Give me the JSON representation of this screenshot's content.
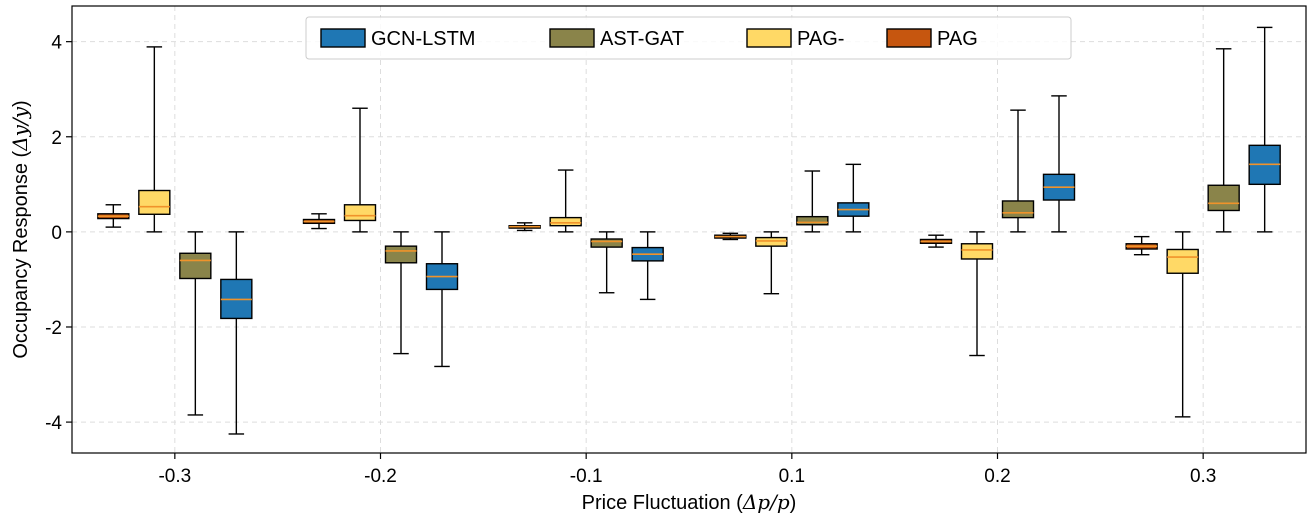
{
  "chart_data": {
    "type": "box",
    "categories": [
      "-0.3",
      "-0.2",
      "-0.1",
      "0.1",
      "0.2",
      "0.3"
    ],
    "xlabel_prefix": "Price Fluctuation (",
    "xlabel_math": "Δp/p",
    "xlabel_suffix": ")",
    "ylabel_prefix": "Occupancy Response (",
    "ylabel_math": "Δy/y",
    "ylabel_suffix": ")",
    "ylim": [
      -4.65,
      4.75
    ],
    "yticks": [
      -4,
      -2,
      0,
      2,
      4
    ],
    "ytick_labels": [
      "-4",
      "-2",
      "0",
      "2",
      "4"
    ],
    "grid": true,
    "legend_position": "top-center",
    "median_color": "#f0932b",
    "series": [
      {
        "name": "PAG",
        "color": "#c6560f",
        "boxes": [
          {
            "whisker_low": 0.1,
            "q1": 0.28,
            "median": 0.33,
            "q3": 0.38,
            "whisker_high": 0.57
          },
          {
            "whisker_low": 0.07,
            "q1": 0.18,
            "median": 0.22,
            "q3": 0.26,
            "whisker_high": 0.38
          },
          {
            "whisker_low": 0.03,
            "q1": 0.08,
            "median": 0.11,
            "q3": 0.13,
            "whisker_high": 0.19
          },
          {
            "whisker_low": -0.16,
            "q1": -0.13,
            "median": -0.1,
            "q3": -0.07,
            "whisker_high": -0.03
          },
          {
            "whisker_low": -0.32,
            "q1": -0.24,
            "median": -0.2,
            "q3": -0.16,
            "whisker_high": -0.07
          },
          {
            "whisker_low": -0.48,
            "q1": -0.36,
            "median": -0.3,
            "q3": -0.25,
            "whisker_high": -0.1
          }
        ]
      },
      {
        "name": "PAG-",
        "color": "#ffd966",
        "boxes": [
          {
            "whisker_low": 0.0,
            "q1": 0.37,
            "median": 0.53,
            "q3": 0.87,
            "whisker_high": 3.89
          },
          {
            "whisker_low": 0.0,
            "q1": 0.24,
            "median": 0.34,
            "q3": 0.57,
            "whisker_high": 2.6
          },
          {
            "whisker_low": 0.0,
            "q1": 0.13,
            "median": 0.19,
            "q3": 0.3,
            "whisker_high": 1.3
          },
          {
            "whisker_low": -1.3,
            "q1": -0.3,
            "median": -0.19,
            "q3": -0.12,
            "whisker_high": 0.0
          },
          {
            "whisker_low": -2.6,
            "q1": -0.57,
            "median": -0.38,
            "q3": -0.25,
            "whisker_high": 0.0
          },
          {
            "whisker_low": -3.89,
            "q1": -0.87,
            "median": -0.53,
            "q3": -0.37,
            "whisker_high": 0.0
          }
        ]
      },
      {
        "name": "AST-GAT",
        "color": "#8a844a",
        "boxes": [
          {
            "whisker_low": -3.85,
            "q1": -0.98,
            "median": -0.6,
            "q3": -0.45,
            "whisker_high": 0.0
          },
          {
            "whisker_low": -2.56,
            "q1": -0.65,
            "median": -0.4,
            "q3": -0.3,
            "whisker_high": 0.0
          },
          {
            "whisker_low": -1.28,
            "q1": -0.32,
            "median": -0.2,
            "q3": -0.15,
            "whisker_high": 0.0
          },
          {
            "whisker_low": 0.0,
            "q1": 0.15,
            "median": 0.2,
            "q3": 0.32,
            "whisker_high": 1.28
          },
          {
            "whisker_low": 0.0,
            "q1": 0.3,
            "median": 0.4,
            "q3": 0.65,
            "whisker_high": 2.56
          },
          {
            "whisker_low": 0.0,
            "q1": 0.45,
            "median": 0.6,
            "q3": 0.98,
            "whisker_high": 3.85
          }
        ]
      },
      {
        "name": "GCN-LSTM",
        "color": "#1f77b4",
        "boxes": [
          {
            "whisker_low": -4.25,
            "q1": -1.82,
            "median": -1.42,
            "q3": -1.0,
            "whisker_high": 0.0
          },
          {
            "whisker_low": -2.83,
            "q1": -1.21,
            "median": -0.94,
            "q3": -0.67,
            "whisker_high": 0.0
          },
          {
            "whisker_low": -1.42,
            "q1": -0.61,
            "median": -0.47,
            "q3": -0.33,
            "whisker_high": 0.0
          },
          {
            "whisker_low": 0.0,
            "q1": 0.33,
            "median": 0.47,
            "q3": 0.61,
            "whisker_high": 1.42
          },
          {
            "whisker_low": 0.0,
            "q1": 0.67,
            "median": 0.94,
            "q3": 1.21,
            "whisker_high": 2.86
          },
          {
            "whisker_low": 0.0,
            "q1": 1.0,
            "median": 1.42,
            "q3": 1.82,
            "whisker_high": 4.3
          }
        ]
      }
    ],
    "legend_order": [
      "GCN-LSTM",
      "AST-GAT",
      "PAG-",
      "PAG"
    ]
  }
}
